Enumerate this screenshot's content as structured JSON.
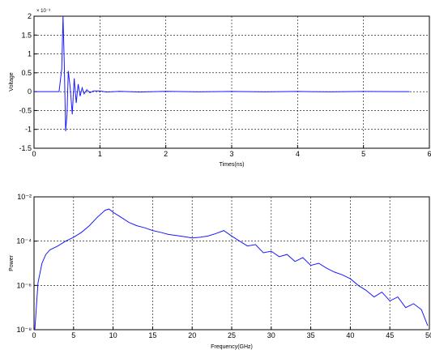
{
  "chart_data": [
    {
      "type": "line",
      "title": "",
      "xlabel": "Times(ns)",
      "ylabel": "Voltage",
      "y_scale_multiplier": "× 10⁻³",
      "xlim": [
        0,
        6
      ],
      "ylim": [
        -1.5,
        2
      ],
      "x_ticks": [
        "0",
        "1",
        "2",
        "3",
        "4",
        "5",
        "6"
      ],
      "y_ticks": [
        "2",
        "1.5",
        "1",
        "0.5",
        "0",
        "-0.5",
        "-1",
        "-1.5"
      ],
      "grid": true,
      "color": "#1a1aff",
      "series": [
        {
          "x": [
            0,
            0.38,
            0.42,
            0.44,
            0.46,
            0.48,
            0.5,
            0.52,
            0.55,
            0.58,
            0.61,
            0.64,
            0.67,
            0.7,
            0.73,
            0.76,
            0.8,
            0.85,
            0.9,
            1.0,
            1.1,
            1.3,
            1.6,
            2.0,
            2.5,
            3.0,
            3.5,
            4.0,
            4.5,
            5.0,
            5.5,
            5.7
          ],
          "y": [
            0,
            0,
            0.6,
            2.0,
            0.7,
            -1.05,
            -0.6,
            0.55,
            0.1,
            -0.6,
            0.35,
            -0.3,
            0.2,
            -0.12,
            0.1,
            -0.06,
            0.05,
            -0.03,
            0.02,
            0.02,
            -0.01,
            0.01,
            -0.01,
            0.01,
            -0.005,
            0.005,
            -0.005,
            0.005,
            -0.005,
            0.005,
            0,
            0
          ]
        }
      ]
    },
    {
      "type": "line",
      "title": "",
      "xlabel": "Frequency(GHz)",
      "ylabel": "Power",
      "y_scale": "log",
      "xlim": [
        0,
        50
      ],
      "ylim": [
        1e-08,
        0.01
      ],
      "x_ticks": [
        "0",
        "5",
        "10",
        "15",
        "20",
        "25",
        "30",
        "35",
        "40",
        "45",
        "50"
      ],
      "y_ticks": [
        "10⁻²",
        "10⁻⁴",
        "10⁻⁶",
        "10⁻⁸"
      ],
      "grid": true,
      "color": "#1a1aff",
      "series": [
        {
          "x": [
            0.1,
            0.5,
            1,
            1.5,
            2,
            3,
            4,
            5,
            6,
            7,
            8,
            9,
            9.5,
            10,
            11,
            12,
            13,
            14,
            15,
            16,
            17,
            18,
            19,
            20,
            21,
            22,
            23,
            24,
            25,
            26,
            27,
            28,
            29,
            30,
            31,
            32,
            33,
            34,
            35,
            36,
            37,
            38,
            39,
            40,
            41,
            42,
            43,
            44,
            45,
            46,
            47,
            48,
            49,
            49.8
          ],
          "y": [
            1e-08,
            1.3e-06,
            1e-05,
            2.5e-05,
            4e-05,
            6e-05,
            0.0001,
            0.00015,
            0.00025,
            0.0005,
            0.0012,
            0.0025,
            0.0028,
            0.002,
            0.0012,
            0.0007,
            0.0005,
            0.0004,
            0.0003,
            0.00025,
            0.0002,
            0.00018,
            0.00016,
            0.00014,
            0.00015,
            0.00017,
            0.00022,
            0.0003,
            0.00017,
            0.0001,
            6e-05,
            7e-05,
            3e-05,
            3.5e-05,
            2e-05,
            2.5e-05,
            1.2e-05,
            1.8e-05,
            8e-06,
            1e-05,
            6e-06,
            4e-06,
            3e-06,
            2e-06,
            1e-06,
            6e-07,
            3e-07,
            5e-07,
            2e-07,
            3e-07,
            1e-07,
            1.5e-07,
            8e-08,
            1.5e-08
          ]
        }
      ]
    }
  ]
}
